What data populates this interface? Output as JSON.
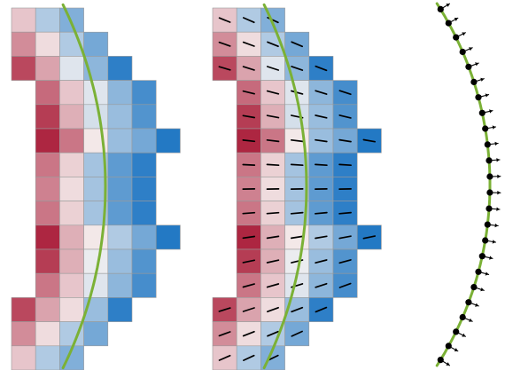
{
  "panels": [
    {
      "id": "scalar-field",
      "show_arrows": false
    },
    {
      "id": "gradient-field",
      "show_arrows": true
    },
    {
      "id": "surface-normals"
    }
  ],
  "grid": {
    "rows": 15,
    "col_start": [
      0,
      0,
      0,
      1,
      1,
      1,
      1,
      1,
      1,
      1,
      1,
      1,
      0,
      0,
      0
    ],
    "values": [
      [
        0.2,
        -0.3,
        -0.5
      ],
      [
        0.45,
        0.1,
        -0.3,
        -0.55
      ],
      [
        0.75,
        0.35,
        -0.1,
        -0.45,
        -0.85
      ],
      [
        0.6,
        0.2,
        -0.1,
        -0.45,
        -0.75
      ],
      [
        0.8,
        0.3,
        -0.15,
        -0.4,
        -0.7
      ],
      [
        0.9,
        0.55,
        0.05,
        -0.4,
        -0.55,
        -0.9
      ],
      [
        0.55,
        0.15,
        -0.35,
        -0.65,
        -0.85
      ],
      [
        0.5,
        0.1,
        -0.35,
        -0.65,
        -0.85
      ],
      [
        0.55,
        0.15,
        -0.35,
        -0.65,
        -0.85
      ],
      [
        0.9,
        0.3,
        0.05,
        -0.3,
        -0.55,
        -0.9
      ],
      [
        0.8,
        0.3,
        -0.05,
        -0.4,
        -0.7
      ],
      [
        0.55,
        0.2,
        -0.1,
        -0.45,
        -0.75
      ],
      [
        0.75,
        0.35,
        0.1,
        -0.4,
        -0.85
      ],
      [
        0.45,
        0.1,
        -0.3,
        -0.55
      ],
      [
        0.2,
        -0.3,
        -0.5
      ]
    ]
  },
  "colors": {
    "positive_strong": "#a50f2d",
    "neutral": "#f7f3f2",
    "negative_strong": "#0b6bbf",
    "curve": "#7bb136",
    "arrows": "#000000",
    "background": "#ffffff"
  },
  "normals": {
    "count": 24
  }
}
